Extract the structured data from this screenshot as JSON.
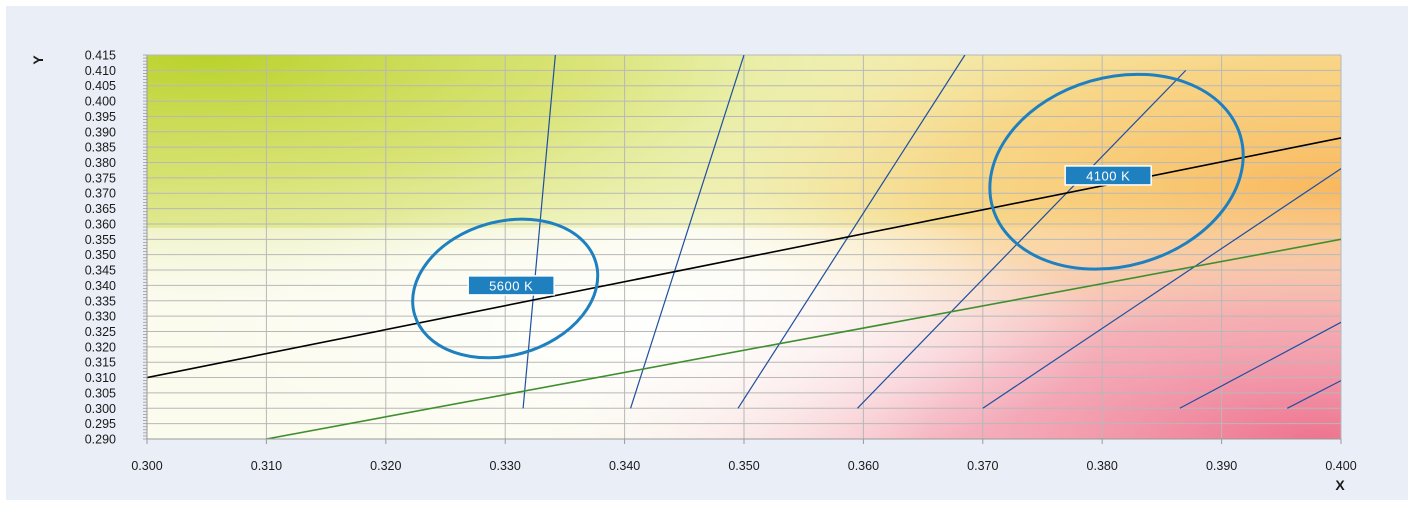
{
  "chart_data": {
    "type": "scatter",
    "xlabel": "X",
    "ylabel": "Y",
    "xlim": [
      0.3,
      0.4
    ],
    "ylim": [
      0.29,
      0.415
    ],
    "x_ticks": [
      "0.300",
      "0.310",
      "0.320",
      "0.330",
      "0.340",
      "0.350",
      "0.360",
      "0.370",
      "0.380",
      "0.390",
      "0.400"
    ],
    "y_ticks": [
      "0.290",
      "0.295",
      "0.300",
      "0.305",
      "0.310",
      "0.315",
      "0.320",
      "0.325",
      "0.330",
      "0.335",
      "0.340",
      "0.345",
      "0.350",
      "0.355",
      "0.360",
      "0.365",
      "0.370",
      "0.375",
      "0.380",
      "0.385",
      "0.390",
      "0.395",
      "0.400",
      "0.405",
      "0.410",
      "0.415"
    ],
    "grid": true,
    "colors": {
      "background_panel": "#e9eef7",
      "planckian_locus": "#000000",
      "green_line": "#3f8f2f",
      "isotemperature_lines": "#1f4fa0",
      "ellipse": "#1f80c0",
      "label_fill": "#1f80c0",
      "grid": "#b8b8b8"
    },
    "series": [
      {
        "style": "planckian-locus",
        "points": [
          [
            0.3,
            0.31
          ],
          [
            0.4,
            0.388
          ]
        ]
      },
      {
        "style": "green-line",
        "points": [
          [
            0.31,
            0.29
          ],
          [
            0.4,
            0.355
          ]
        ]
      }
    ],
    "isotemperature_lines": [
      {
        "points": [
          [
            0.3315,
            0.3
          ],
          [
            0.3342,
            0.415
          ]
        ]
      },
      {
        "points": [
          [
            0.3405,
            0.3
          ],
          [
            0.35,
            0.415
          ]
        ]
      },
      {
        "points": [
          [
            0.3495,
            0.3
          ],
          [
            0.3685,
            0.415
          ]
        ]
      },
      {
        "points": [
          [
            0.3595,
            0.3
          ],
          [
            0.387,
            0.41
          ]
        ]
      },
      {
        "points": [
          [
            0.37,
            0.3
          ],
          [
            0.4,
            0.378
          ]
        ]
      },
      {
        "points": [
          [
            0.3865,
            0.3
          ],
          [
            0.4,
            0.328
          ]
        ]
      },
      {
        "points": [
          [
            0.3955,
            0.3
          ],
          [
            0.4,
            0.309
          ]
        ]
      }
    ],
    "annotations": [
      {
        "label": "5600 K",
        "center": [
          0.33,
          0.339
        ],
        "rx": 0.0079,
        "ry": 0.0056,
        "rotation_deg": -16,
        "label_anchor": [
          0.3305,
          0.34
        ]
      },
      {
        "label": "4100 K",
        "center": [
          0.3812,
          0.377
        ],
        "rx": 0.0108,
        "ry": 0.0079,
        "rotation_deg": -16,
        "label_anchor": [
          0.3805,
          0.3758
        ]
      }
    ]
  }
}
